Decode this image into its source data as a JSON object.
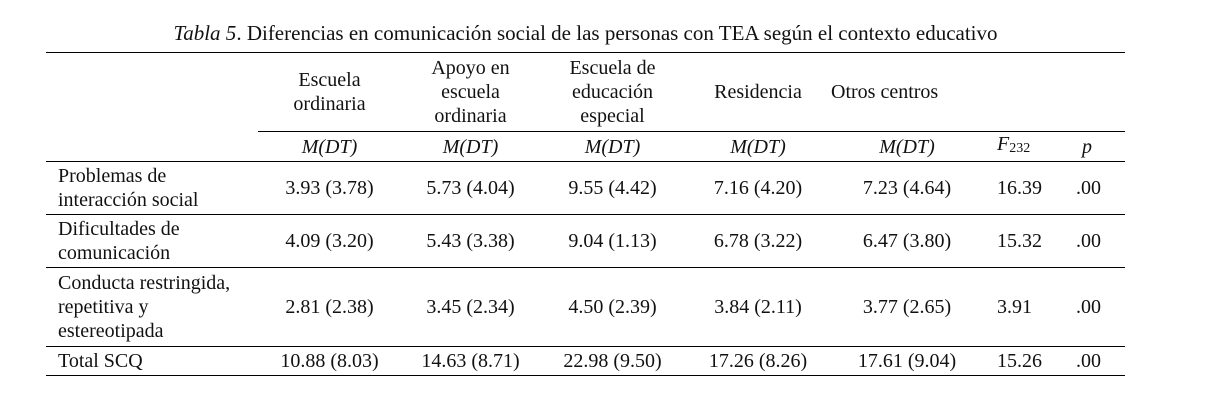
{
  "caption": {
    "label": "Tabla 5",
    "text": ". Diferencias en comunicación social de las personas con TEA según el contexto educativo"
  },
  "header": {
    "groups": [
      "Escuela ordinaria",
      "Apoyo en escuela ordinaria",
      "Escuela de educación especial",
      "Residencia",
      "Otros centros"
    ],
    "stat": "M(DT)",
    "f_label": "F",
    "f_sub": "232",
    "p_label": "p"
  },
  "rows": [
    {
      "label": "Problemas de interacción social",
      "values": [
        "3.93 (3.78)",
        "5.73 (4.04)",
        "9.55 (4.42)",
        "7.16 (4.20)",
        "7.23 (4.64)"
      ],
      "f": "16.39",
      "p": ".00"
    },
    {
      "label": "Dificultades de comunicación",
      "values": [
        "4.09 (3.20)",
        "5.43 (3.38)",
        "9.04 (1.13)",
        "6.78 (3.22)",
        "6.47 (3.80)"
      ],
      "f": "15.32",
      "p": ".00"
    },
    {
      "label": "Conducta restringida, repetitiva y estereotipada",
      "values": [
        "2.81 (2.38)",
        "3.45 (2.34)",
        "4.50 (2.39)",
        "3.84 (2.11)",
        "3.77 (2.65)"
      ],
      "f": "3.91",
      "p": ".00"
    },
    {
      "label": "Total SCQ",
      "values": [
        "10.88 (8.03)",
        "14.63 (8.71)",
        "22.98 (9.50)",
        "17.26 (8.26)",
        "17.61 (9.04)"
      ],
      "f": "15.26",
      "p": ".00"
    }
  ]
}
